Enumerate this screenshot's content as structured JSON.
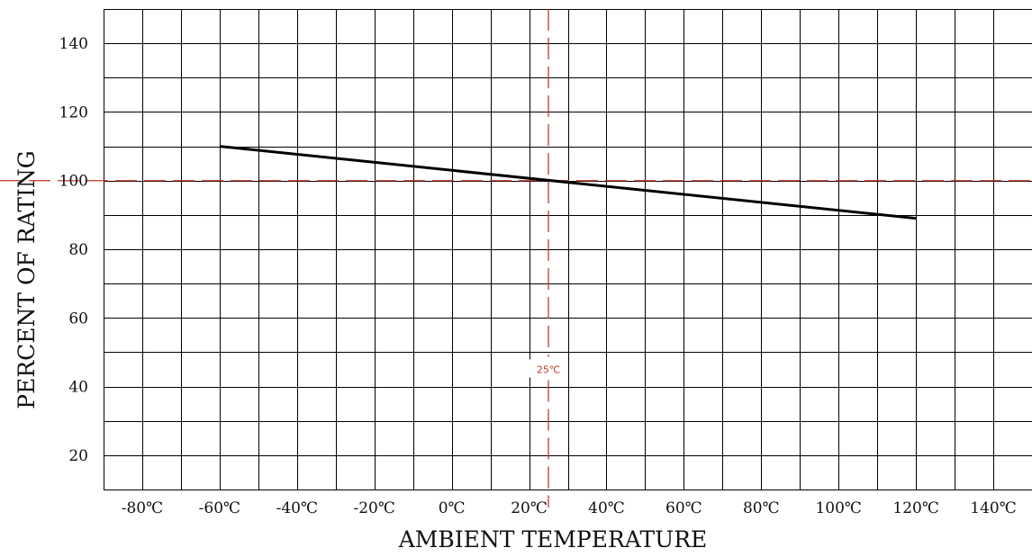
{
  "chart_data": {
    "type": "line",
    "title": "",
    "xlabel": "AMBIENT TEMPERATURE",
    "ylabel": "PERCENT OF RATING",
    "xlim": [
      -90,
      150
    ],
    "ylim": [
      10,
      150
    ],
    "grid": true,
    "x_ticks": [
      {
        "value": -80,
        "label": "-80℃"
      },
      {
        "value": -60,
        "label": "-60℃"
      },
      {
        "value": -40,
        "label": "-40℃"
      },
      {
        "value": -20,
        "label": "-20℃"
      },
      {
        "value": 0,
        "label": "0℃"
      },
      {
        "value": 20,
        "label": "20℃"
      },
      {
        "value": 40,
        "label": "40℃"
      },
      {
        "value": 60,
        "label": "60℃"
      },
      {
        "value": 80,
        "label": "80℃"
      },
      {
        "value": 100,
        "label": "100℃"
      },
      {
        "value": 120,
        "label": "120℃"
      },
      {
        "value": 140,
        "label": "140℃"
      }
    ],
    "y_ticks": [
      {
        "value": 20,
        "label": "20"
      },
      {
        "value": 40,
        "label": "40"
      },
      {
        "value": 60,
        "label": "60"
      },
      {
        "value": 80,
        "label": "80"
      },
      {
        "value": 100,
        "label": "100"
      },
      {
        "value": 120,
        "label": "120"
      },
      {
        "value": 140,
        "label": "140"
      }
    ],
    "series": [
      {
        "x": [
          -60,
          120
        ],
        "y": [
          110,
          89
        ],
        "color": "#000000"
      }
    ],
    "reference_lines": {
      "vertical": {
        "x": 25,
        "label": "25℃",
        "color": "#c0392b"
      },
      "horizontal": {
        "y": 100,
        "color": "#c0392b"
      }
    },
    "colors": {
      "grid": "#000000",
      "series": "#000000",
      "reference": "#c0392b"
    }
  }
}
